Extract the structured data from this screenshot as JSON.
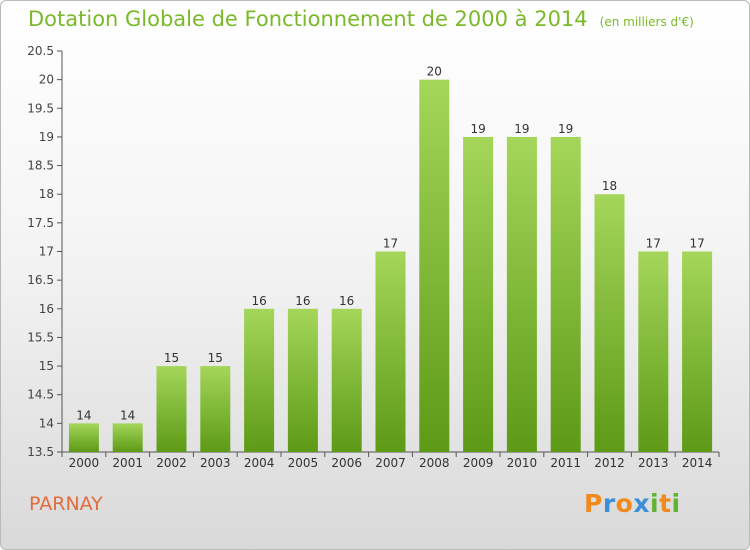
{
  "chart_data": {
    "type": "bar",
    "title": "Dotation Globale de Fonctionnement de 2000 à 2014",
    "subtitle": "(en milliers d'€)",
    "categories": [
      "2000",
      "2001",
      "2002",
      "2003",
      "2004",
      "2005",
      "2006",
      "2007",
      "2008",
      "2009",
      "2010",
      "2011",
      "2012",
      "2013",
      "2014"
    ],
    "values": [
      14,
      14,
      15,
      15,
      16,
      16,
      16,
      17,
      20,
      19,
      19,
      19,
      18,
      17,
      17
    ],
    "value_labels": [
      "14",
      "14",
      "15",
      "15",
      "16",
      "16",
      "16",
      "17",
      "20",
      "19",
      "19",
      "19",
      "18",
      "17",
      "17"
    ],
    "ylim": [
      13.5,
      20.5
    ],
    "yticks": [
      13.5,
      14,
      14.5,
      15,
      15.5,
      16,
      16.5,
      17,
      17.5,
      18,
      18.5,
      19,
      19.5,
      20,
      20.5
    ],
    "ytick_labels": [
      "13.5",
      "14",
      "14.5",
      "15",
      "15.5",
      "16",
      "16.5",
      "17",
      "17.5",
      "18",
      "18.5",
      "19",
      "19.5",
      "20",
      "20.5"
    ],
    "bar_color": "#7ab929",
    "grid": false,
    "xlabel": "",
    "ylabel": ""
  },
  "footer": {
    "commune": "PARNAY",
    "logo_letters": [
      "P",
      "r",
      "o",
      "x",
      "i",
      "t",
      "i"
    ],
    "logo_colors": [
      "#f08a1c",
      "#3a8fd8",
      "#f08a1c",
      "#3a8fd8",
      "#5fb52e",
      "#f08a1c",
      "#5fb52e"
    ]
  }
}
